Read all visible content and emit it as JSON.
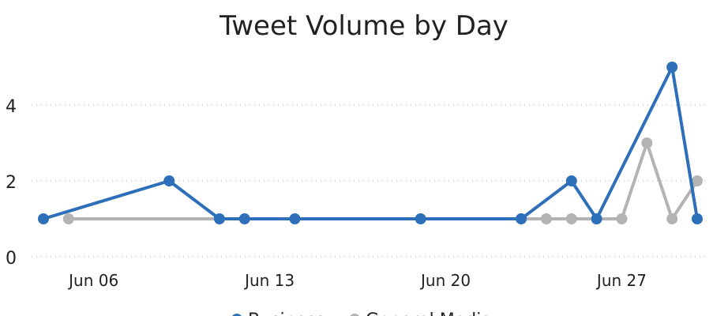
{
  "chart_data": {
    "type": "line",
    "title": "Tweet Volume by Day",
    "xlim": [
      "Jun 04",
      "Jun 30"
    ],
    "xticks": [
      "Jun 06",
      "Jun 13",
      "Jun 20",
      "Jun 27"
    ],
    "ylim": [
      0,
      5
    ],
    "yticks": [
      0,
      2,
      4
    ],
    "grid": true,
    "series": [
      {
        "name": "Business",
        "color": "#2e6fba",
        "x": [
          "Jun 04",
          "Jun 09",
          "Jun 11",
          "Jun 12",
          "Jun 14",
          "Jun 19",
          "Jun 23",
          "Jun 25",
          "Jun 26",
          "Jun 29",
          "Jun 30"
        ],
        "values": [
          1,
          2,
          1,
          1,
          1,
          1,
          1,
          2,
          1,
          5,
          1
        ]
      },
      {
        "name": "General Media",
        "color": "#b3b3b3",
        "x": [
          "Jun 05",
          "Jun 23",
          "Jun 24",
          "Jun 25",
          "Jun 26",
          "Jun 27",
          "Jun 28",
          "Jun 29",
          "Jun 30"
        ],
        "values": [
          1,
          1,
          1,
          1,
          1,
          1,
          3,
          1,
          2
        ]
      }
    ]
  }
}
